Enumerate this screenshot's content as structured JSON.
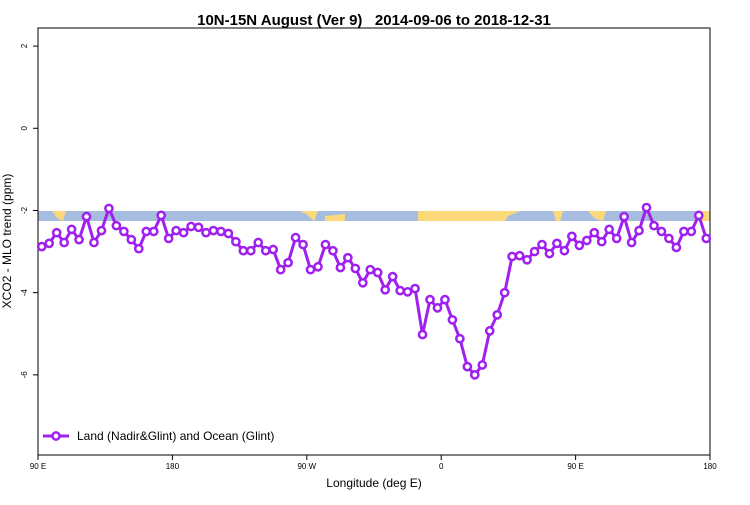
{
  "chart_data": {
    "type": "line",
    "title": "10N-15N August (Ver 9)   2014-09-06 to 2018-12-31",
    "xlabel": "Longitude (deg E)",
    "ylabel": "XCO2 - MLO trend (ppm)",
    "xlim": [
      90,
      540
    ],
    "ylim": [
      -7.95,
      2.44
    ],
    "xticks": [
      {
        "value": 90,
        "label": "90 E"
      },
      {
        "value": 180,
        "label": "180"
      },
      {
        "value": 270,
        "label": "90 W"
      },
      {
        "value": 360,
        "label": "0"
      },
      {
        "value": 450,
        "label": "90 E"
      },
      {
        "value": 540,
        "label": "180"
      }
    ],
    "yticks": [
      -6,
      -4,
      -2,
      0,
      2
    ],
    "legend": "bottom-left",
    "x": [
      92.5,
      97.5,
      102.5,
      107.5,
      112.5,
      117.5,
      122.5,
      127.5,
      132.5,
      137.5,
      142.5,
      147.5,
      152.5,
      157.5,
      162.5,
      167.5,
      172.5,
      177.5,
      182.5,
      187.5,
      192.5,
      197.5,
      202.5,
      207.5,
      212.5,
      217.5,
      222.5,
      227.5,
      232.5,
      237.5,
      242.5,
      247.5,
      252.5,
      257.5,
      262.5,
      267.5,
      272.5,
      277.5,
      282.5,
      287.5,
      292.5,
      297.5,
      302.5,
      307.5,
      312.5,
      317.5,
      322.5,
      327.5,
      332.5,
      337.5,
      342.5,
      347.5,
      352.5,
      357.5,
      362.5,
      367.5,
      372.5,
      377.5,
      382.5,
      387.5,
      392.5,
      397.5,
      402.5,
      407.5,
      412.5,
      417.5,
      422.5,
      427.5,
      432.5,
      437.5,
      442.5,
      447.5,
      452.5,
      457.5,
      462.5,
      467.5,
      472.5,
      477.5,
      482.5,
      487.5,
      492.5,
      497.5,
      502.5,
      507.5,
      512.5,
      517.5,
      522.5,
      527.5,
      532.5,
      537.5
    ],
    "series": [
      {
        "name": "Land (Nadir&Glint) and Ocean (Glint)",
        "color": "#a020f0",
        "values": [
          -2.88,
          -2.8,
          -2.54,
          -2.78,
          -2.46,
          -2.71,
          -2.15,
          -2.78,
          -2.49,
          -1.95,
          -2.37,
          -2.51,
          -2.71,
          -2.93,
          -2.51,
          -2.51,
          -2.12,
          -2.68,
          -2.49,
          -2.54,
          -2.39,
          -2.41,
          -2.54,
          -2.49,
          -2.51,
          -2.56,
          -2.76,
          -2.98,
          -2.98,
          -2.78,
          -2.98,
          -2.95,
          -3.44,
          -3.27,
          -2.66,
          -2.83,
          -3.44,
          -3.37,
          -2.83,
          -2.98,
          -3.39,
          -3.15,
          -3.41,
          -3.76,
          -3.44,
          -3.51,
          -3.93,
          -3.61,
          -3.95,
          -3.98,
          -3.9,
          -5.02,
          -4.17,
          -4.37,
          -4.17,
          -4.66,
          -5.12,
          -5.8,
          -6.0,
          -5.76,
          -4.93,
          -4.54,
          -4.0,
          -3.12,
          -3.1,
          -3.2,
          -3.0,
          -2.83,
          -3.05,
          -2.8,
          -2.98,
          -2.63,
          -2.85,
          -2.73,
          -2.54,
          -2.76,
          -2.46,
          -2.68,
          -2.15,
          -2.78,
          -2.49,
          -1.93,
          -2.37,
          -2.51,
          -2.68,
          -2.9,
          -2.51,
          -2.51,
          -2.12,
          -2.68
        ]
      }
    ]
  }
}
